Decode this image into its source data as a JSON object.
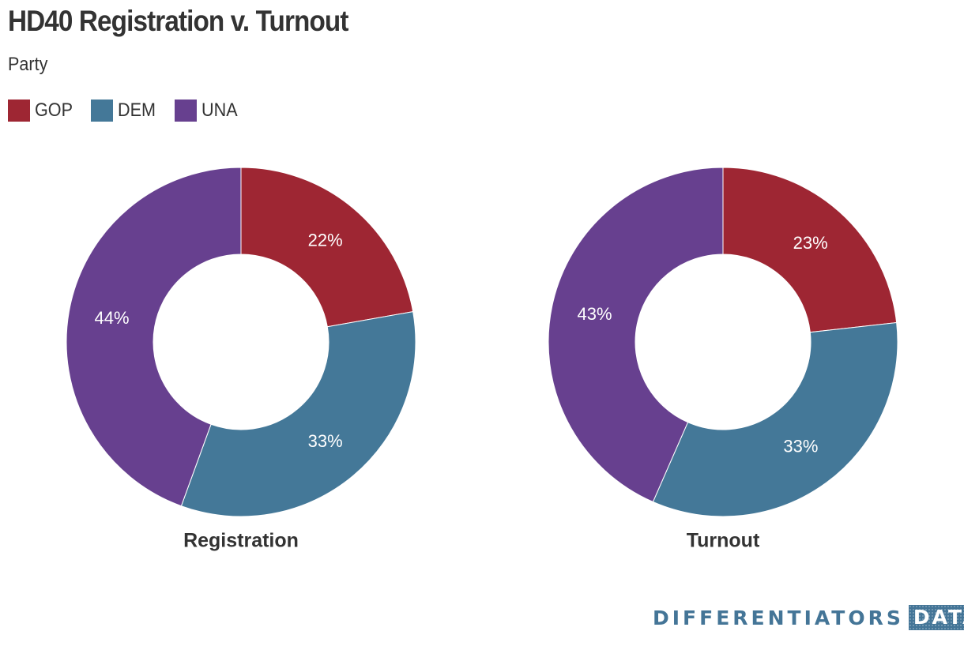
{
  "chart_data": {
    "type": "pie",
    "variant": "donut",
    "title": "HD40 Registration v. Turnout",
    "subtitle": "Party",
    "legend": {
      "placement": "top-left",
      "entries": [
        "GOP",
        "DEM",
        "UNA"
      ]
    },
    "categories": [
      "GOP",
      "DEM",
      "UNA"
    ],
    "colors": {
      "GOP": "#9e2633",
      "DEM": "#447898",
      "UNA": "#67408f"
    },
    "charts": [
      {
        "name": "Registration",
        "values": [
          22,
          33,
          44
        ],
        "labels": [
          "22%",
          "33%",
          "44%"
        ]
      },
      {
        "name": "Turnout",
        "values": [
          23,
          33,
          43
        ],
        "labels": [
          "23%",
          "33%",
          "43%"
        ]
      }
    ]
  },
  "branding": {
    "name": "DIFFERENTIATORS",
    "box": "DATA"
  }
}
